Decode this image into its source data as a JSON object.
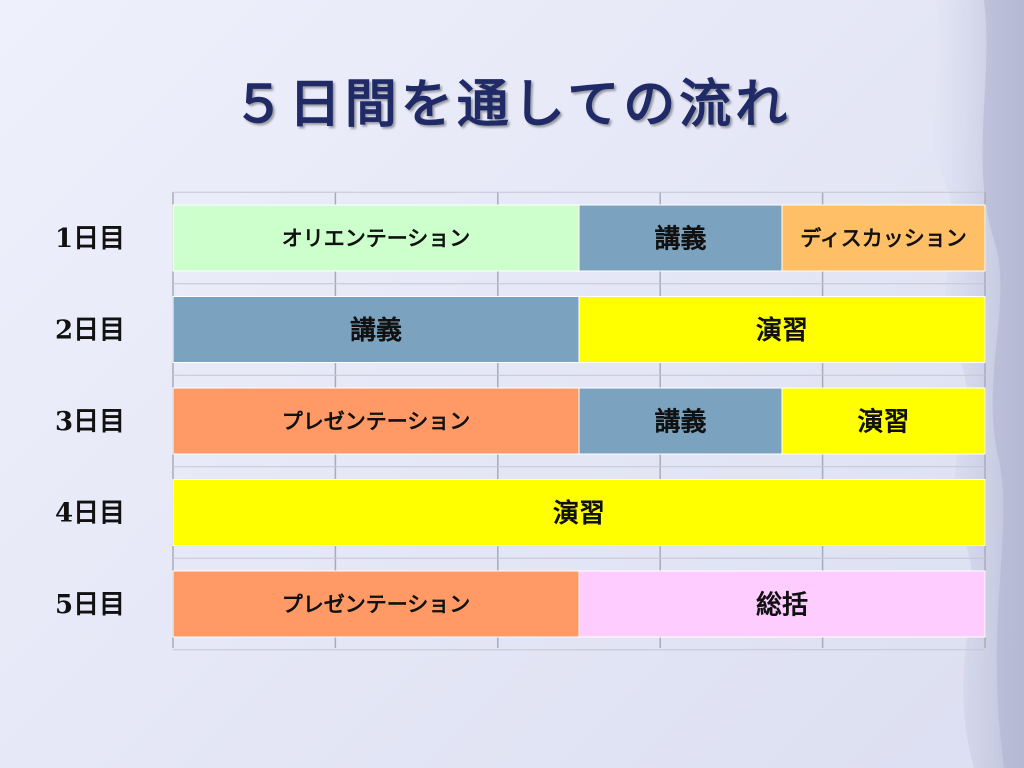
{
  "title": "５日間を通しての流れ",
  "colors": {
    "orientation": "#ccffcc",
    "lecture": "#7ba3bf",
    "discussion": "#ffbf66",
    "exercise": "#ffff00",
    "presentation": "#ff9966",
    "summary": "#ffccff"
  },
  "chart_data": {
    "type": "bar",
    "orientation": "horizontal-stacked",
    "categories": [
      "1日目",
      "2日目",
      "3日目",
      "4日目",
      "5日目"
    ],
    "xlim": [
      0,
      5
    ],
    "grid": true,
    "rows": [
      {
        "day": "1日目",
        "segments": [
          {
            "label": "オリエンテーション",
            "value": 2.5,
            "color": "orientation"
          },
          {
            "label": "講義",
            "value": 1.25,
            "color": "lecture"
          },
          {
            "label": "ディスカッション",
            "value": 1.25,
            "color": "discussion"
          }
        ]
      },
      {
        "day": "2日目",
        "segments": [
          {
            "label": "講義",
            "value": 2.5,
            "color": "lecture"
          },
          {
            "label": "演習",
            "value": 2.5,
            "color": "exercise"
          }
        ]
      },
      {
        "day": "3日目",
        "segments": [
          {
            "label": "プレゼンテーション",
            "value": 2.5,
            "color": "presentation"
          },
          {
            "label": "講義",
            "value": 1.25,
            "color": "lecture"
          },
          {
            "label": "演習",
            "value": 1.25,
            "color": "exercise"
          }
        ]
      },
      {
        "day": "4日目",
        "segments": [
          {
            "label": "演習",
            "value": 5,
            "color": "exercise"
          }
        ]
      },
      {
        "day": "5日目",
        "segments": [
          {
            "label": "プレゼンテーション",
            "value": 2.5,
            "color": "presentation"
          },
          {
            "label": "総括",
            "value": 2.5,
            "color": "summary"
          }
        ]
      }
    ]
  }
}
